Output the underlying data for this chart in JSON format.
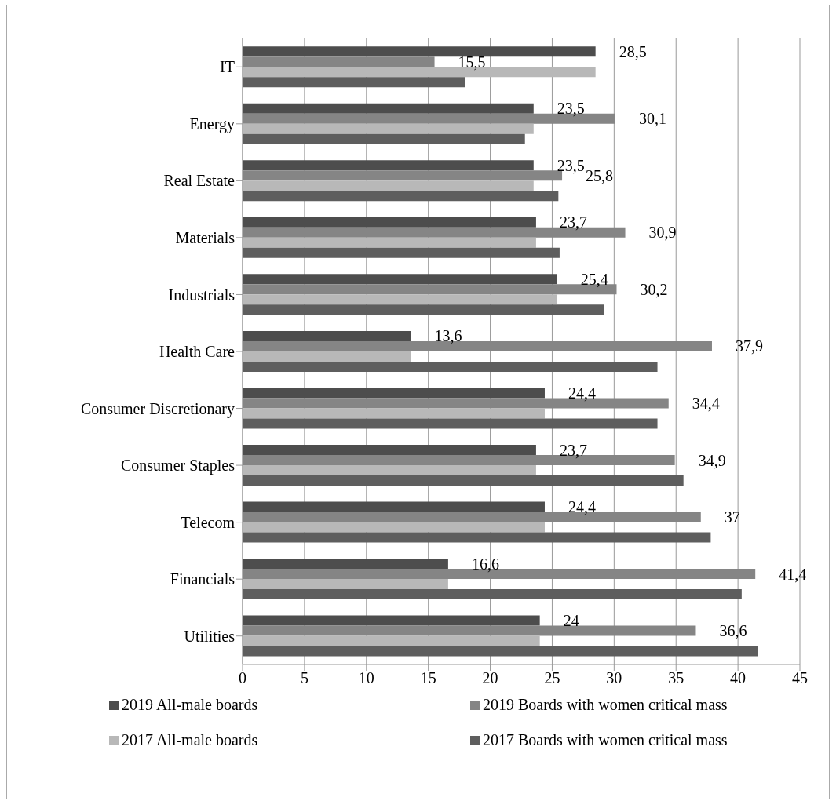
{
  "chart_data": {
    "type": "bar",
    "orientation": "horizontal",
    "categories": [
      "IT",
      "Energy",
      "Real Estate",
      "Materials",
      "Industrials",
      "Health Care",
      "Consumer Discretionary",
      "Consumer Staples",
      "Telecom",
      "Financials",
      "Utilities"
    ],
    "series": [
      {
        "name": "2019 All-male boards",
        "color": "#4d4d4d",
        "values": [
          28.5,
          23.5,
          23.5,
          23.7,
          25.4,
          13.6,
          24.4,
          23.7,
          24.4,
          16.6,
          24
        ],
        "value_labels": [
          "28,5",
          "23,5",
          "23,5",
          "23,7",
          "25,4",
          "13,6",
          "24,4",
          "23,7",
          "24,4",
          "16,6",
          "24"
        ]
      },
      {
        "name": "2019 Boards with women critical mass",
        "color": "#858585",
        "values": [
          15.5,
          30.1,
          25.8,
          30.9,
          30.2,
          37.9,
          34.4,
          34.9,
          37,
          41.4,
          36.6
        ],
        "value_labels": [
          "15,5",
          "30,1",
          "25,8",
          "30,9",
          "30,2",
          "37,9",
          "34,4",
          "34,9",
          "37",
          "41,4",
          "36,6"
        ]
      },
      {
        "name": "2017 All-male boards",
        "color": "#b8b8b8",
        "values": [
          28.5,
          23.5,
          23.5,
          23.7,
          25.4,
          13.6,
          24.4,
          23.7,
          24.4,
          16.6,
          24
        ]
      },
      {
        "name": "2017 Boards with women critical mass",
        "color": "#5e5e5e",
        "values": [
          18.0,
          22.8,
          25.5,
          25.6,
          29.2,
          33.5,
          33.5,
          35.6,
          37.8,
          40.3,
          41.6
        ]
      }
    ],
    "xlim": [
      0,
      45
    ],
    "xticks": [
      0,
      5,
      10,
      15,
      20,
      25,
      30,
      35,
      40,
      45
    ],
    "grid": "x",
    "legend": "bottom"
  }
}
